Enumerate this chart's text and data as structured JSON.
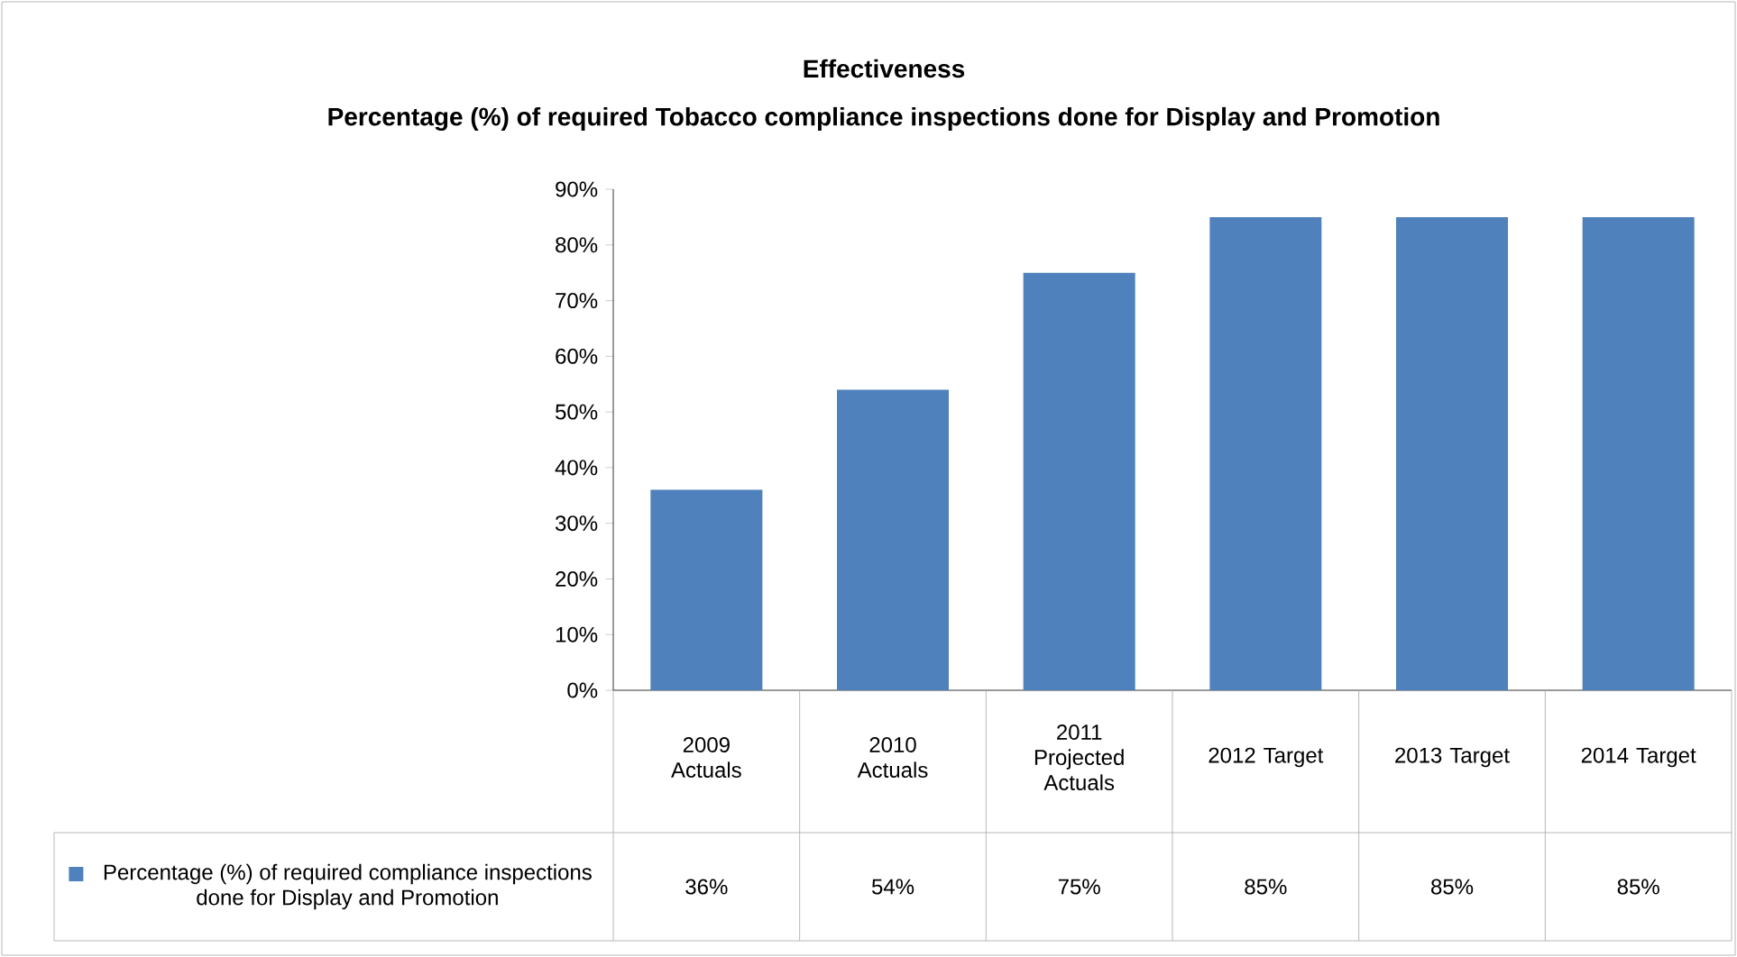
{
  "chart_data": {
    "type": "bar",
    "title": "Effectiveness",
    "subtitle": "Percentage (%) of required Tobacco compliance inspections done for Display and Promotion",
    "categories": [
      "2009 Actuals",
      "2010 Actuals",
      "2011 Projected Actuals",
      "2012 Target",
      "2013 Target",
      "2014 Target"
    ],
    "series": [
      {
        "name": "Percentage (%) of required compliance inspections done for Display and Promotion",
        "color": "#4f81bd",
        "values": [
          36,
          54,
          75,
          85,
          85,
          85
        ]
      }
    ],
    "value_labels": [
      "36%",
      "54%",
      "75%",
      "85%",
      "85%",
      "85%"
    ],
    "ylim": [
      0,
      90
    ],
    "yticks": [
      {
        "value": 0,
        "label": "0%"
      },
      {
        "value": 10,
        "label": "10%"
      },
      {
        "value": 20,
        "label": "20%"
      },
      {
        "value": 30,
        "label": "30%"
      },
      {
        "value": 40,
        "label": "40%"
      },
      {
        "value": 50,
        "label": "50%"
      },
      {
        "value": 60,
        "label": "60%"
      },
      {
        "value": 70,
        "label": "70%"
      },
      {
        "value": 80,
        "label": "80%"
      },
      {
        "value": 90,
        "label": "90%"
      }
    ],
    "legend": "bottom left"
  }
}
